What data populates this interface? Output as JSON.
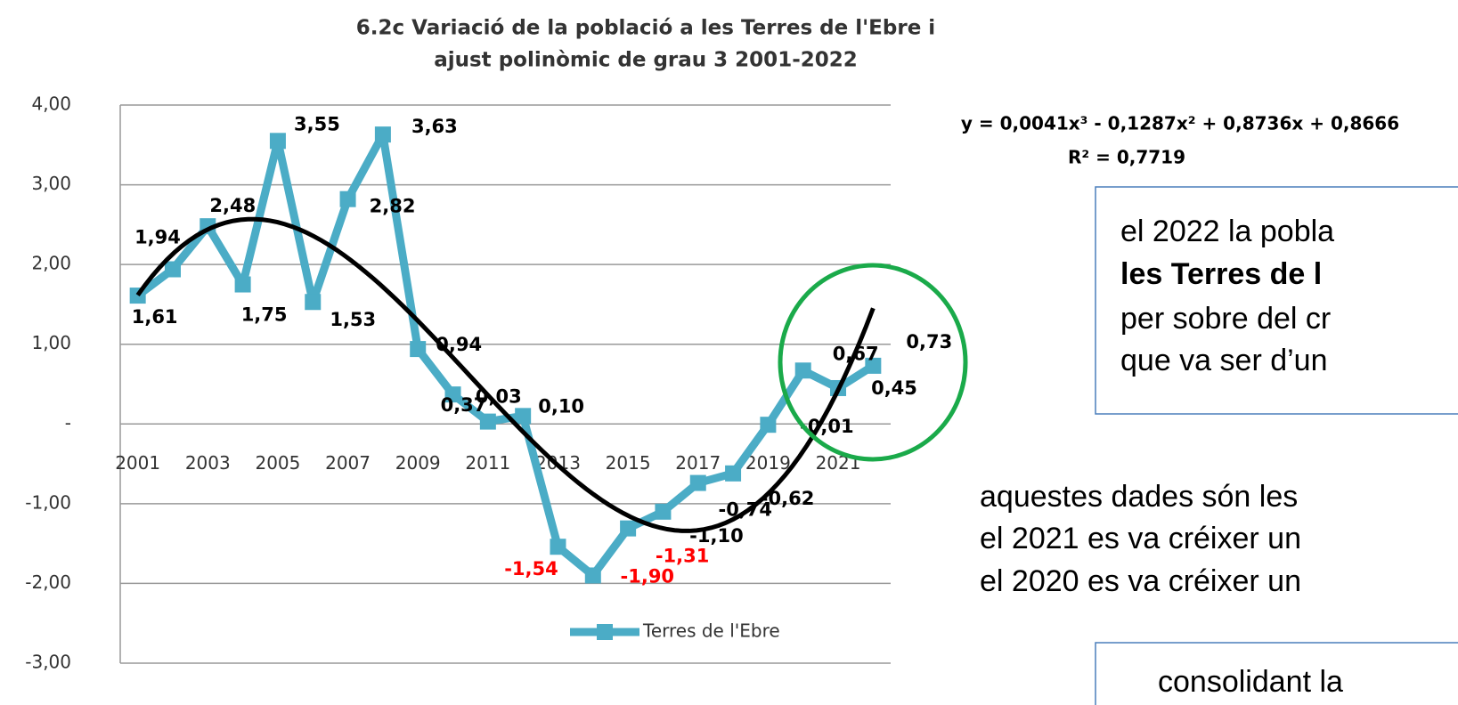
{
  "chart_data": {
    "type": "line",
    "title": [
      "6.2c Variació de la població a les Terres de l'Ebre i",
      "ajust  polinòmic de grau 3  2001-2022"
    ],
    "categories": [
      "2001",
      null,
      "2003",
      null,
      "2005",
      null,
      "2007",
      null,
      "2009",
      null,
      "2011",
      null,
      "2013",
      null,
      "2015",
      null,
      "2017",
      null,
      "2019",
      null,
      "2021",
      null
    ],
    "series": [
      {
        "name": "Terres de l'Ebre",
        "color": "#4bacc6",
        "values": [
          1.61,
          1.94,
          2.48,
          1.75,
          3.55,
          1.53,
          2.82,
          3.63,
          0.94,
          0.37,
          0.03,
          0.1,
          -1.54,
          -1.9,
          -1.31,
          -1.1,
          -0.74,
          -0.62,
          -0.01,
          0.67,
          0.45,
          0.73
        ],
        "value_labels": [
          "1,61",
          "1,94",
          "2,48",
          "1,75",
          "3,55",
          "1,53",
          "2,82",
          "3,63",
          "0,94",
          "0,37",
          "0,03",
          "0,10",
          "-1,54",
          "-1,90",
          "-1,31",
          "-1,10",
          "-0,74",
          "-0,62",
          "-0,01",
          "0,67",
          "0,45",
          "0,73"
        ],
        "value_label_colors": [
          "#000",
          "#000",
          "#000",
          "#000",
          "#000",
          "#000",
          "#000",
          "#000",
          "#000",
          "#000",
          "#000",
          "#000",
          "#ff0000",
          "#ff0000",
          "#ff0000",
          "#000",
          "#000",
          "#000",
          "#000",
          "#000",
          "#000",
          "#000"
        ]
      }
    ],
    "trendline": {
      "equation": "y = 0,0041x³ - 0,1287x² + 0,8736x + 0,8666",
      "r_squared": "R² = 0,7719",
      "coefficients": [
        0.0041,
        -0.1287,
        0.8736,
        0.8666
      ],
      "color": "#000000"
    },
    "ylim": [
      -3,
      4
    ],
    "yticks": [
      {
        "value": 4,
        "label": "4,00"
      },
      {
        "value": 3,
        "label": "3,00"
      },
      {
        "value": 2,
        "label": "2,00"
      },
      {
        "value": 1,
        "label": "1,00"
      },
      {
        "value": 0,
        "label": "-"
      },
      {
        "value": -1,
        "label": "-1,00"
      },
      {
        "value": -2,
        "label": "-2,00"
      },
      {
        "value": -3,
        "label": "-3,00"
      }
    ],
    "grid": true,
    "legend": "bottom"
  },
  "notes": {
    "box1": [
      "el 2022 la pobla",
      "les Terres de l",
      "per sobre del cr",
      "que va ser d’un"
    ],
    "text2": [
      "aquestes dades són les",
      "el 2021 es va créixer un",
      "el 2020 es va créixer un"
    ],
    "box3": [
      "consolidant la"
    ]
  }
}
